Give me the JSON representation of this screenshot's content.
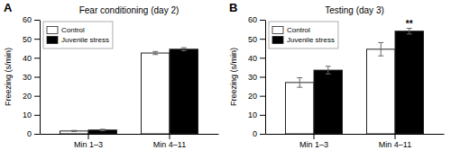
{
  "chart_data": [
    {
      "type": "bar",
      "title": "Fear conditioning (day 2)",
      "panel_label": "A",
      "categories": [
        "Min 1–3",
        "Min 4–11"
      ],
      "series": [
        {
          "name": "Control",
          "color": "white",
          "values": [
            1.5,
            42.5
          ],
          "errors": [
            0.3,
            0.8
          ]
        },
        {
          "name": "Juvenile stress",
          "color": "black",
          "values": [
            2.0,
            44.5
          ],
          "errors": [
            0.4,
            0.8
          ]
        }
      ],
      "ylabel": "Freezing (s/min)",
      "ylim": [
        0,
        60
      ],
      "yticks": [
        0,
        10,
        20,
        30,
        40,
        50,
        60
      ],
      "grid": false,
      "legend": "upper left"
    },
    {
      "type": "bar",
      "title": "Testing (day 3)",
      "panel_label": "B",
      "categories": [
        "Min 1–3",
        "Min 4–11"
      ],
      "series": [
        {
          "name": "Control",
          "color": "white",
          "values": [
            27.0,
            44.5
          ],
          "errors": [
            2.5,
            3.5
          ]
        },
        {
          "name": "Juvenile stress",
          "color": "black",
          "values": [
            33.5,
            54.0
          ],
          "errors": [
            2.0,
            1.5
          ]
        }
      ],
      "ylabel": "Freezing (s/min)",
      "ylim": [
        0,
        60
      ],
      "yticks": [
        0,
        10,
        20,
        30,
        40,
        50,
        60
      ],
      "annotations": [
        {
          "text": "**",
          "x": "Min 4–11",
          "series": "Juvenile stress"
        }
      ],
      "grid": false,
      "legend": "upper left"
    }
  ]
}
